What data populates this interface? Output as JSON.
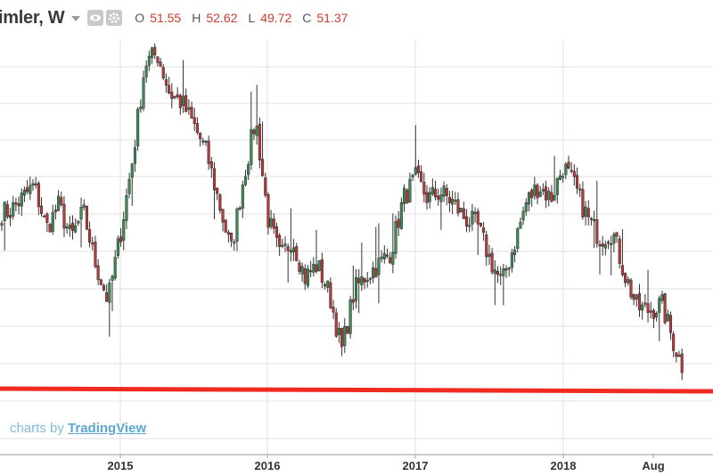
{
  "header": {
    "symbol": "imler, W",
    "ohlc": [
      {
        "label": "O",
        "value": "51.55"
      },
      {
        "label": "H",
        "value": "52.62"
      },
      {
        "label": "L",
        "value": "49.72"
      },
      {
        "label": "C",
        "value": "51.37"
      }
    ],
    "icons": [
      "eye-icon",
      "gear-icon",
      "chevron-down-icon"
    ]
  },
  "branding": {
    "prefix": "charts by",
    "link": "TradingView"
  },
  "colors": {
    "up": "#3e8a55",
    "down": "#b8393a",
    "wick": "#333333",
    "hline": "#f22b22",
    "grid": "#e2e2e2",
    "link": "#5aa7d8"
  },
  "chart_data": {
    "type": "candlestick",
    "interval": "weekly",
    "x_tick_labels": [
      "2015",
      "2016",
      "2017",
      "2018",
      "Aug"
    ],
    "horizontal_line": "red horizontal line near the recent low",
    "grid": true,
    "y_axis_labels_visible": false,
    "closes_path": [
      [
        "2014-04",
        0.52
      ],
      [
        "2014-06",
        0.6
      ],
      [
        "2014-07",
        0.47
      ],
      [
        "2014-08",
        0.54
      ],
      [
        "2014-09",
        0.44
      ],
      [
        "2014-10",
        0.52
      ],
      [
        "2014-11",
        0.36
      ],
      [
        "2014-12",
        0.25
      ],
      [
        "2015-01",
        0.45
      ],
      [
        "2015-02",
        0.68
      ],
      [
        "2015-03",
        0.97
      ],
      [
        "2015-04",
        1.0
      ],
      [
        "2015-05",
        0.88
      ],
      [
        "2015-06",
        0.85
      ],
      [
        "2015-07",
        0.78
      ],
      [
        "2015-08",
        0.7
      ],
      [
        "2015-09",
        0.55
      ],
      [
        "2015-10",
        0.4
      ],
      [
        "2015-11",
        0.62
      ],
      [
        "2015-12",
        0.8
      ],
      [
        "2016-01",
        0.5
      ],
      [
        "2016-02",
        0.38
      ],
      [
        "2016-03",
        0.44
      ],
      [
        "2016-04",
        0.32
      ],
      [
        "2016-05",
        0.36
      ],
      [
        "2016-06",
        0.27
      ],
      [
        "2016-07",
        0.1
      ],
      [
        "2016-08",
        0.28
      ],
      [
        "2016-09",
        0.33
      ],
      [
        "2016-10",
        0.36
      ],
      [
        "2016-11",
        0.4
      ],
      [
        "2016-12",
        0.56
      ],
      [
        "2017-01",
        0.62
      ],
      [
        "2017-02",
        0.56
      ],
      [
        "2017-03",
        0.58
      ],
      [
        "2017-04",
        0.55
      ],
      [
        "2017-05",
        0.5
      ],
      [
        "2017-06",
        0.48
      ],
      [
        "2017-07",
        0.38
      ],
      [
        "2017-08",
        0.3
      ],
      [
        "2017-09",
        0.42
      ],
      [
        "2017-10",
        0.55
      ],
      [
        "2017-11",
        0.6
      ],
      [
        "2017-12",
        0.56
      ],
      [
        "2018-01",
        0.66
      ],
      [
        "2018-02",
        0.59
      ],
      [
        "2018-03",
        0.5
      ],
      [
        "2018-04",
        0.44
      ],
      [
        "2018-05",
        0.46
      ],
      [
        "2018-06",
        0.33
      ],
      [
        "2018-07",
        0.23
      ],
      [
        "2018-08",
        0.22
      ],
      [
        "2018-09",
        0.24
      ],
      [
        "2018-10",
        0.12
      ],
      [
        "2018-11",
        0.02
      ]
    ],
    "value_scale": "relative 0-1 (price axis labels not visible)"
  }
}
